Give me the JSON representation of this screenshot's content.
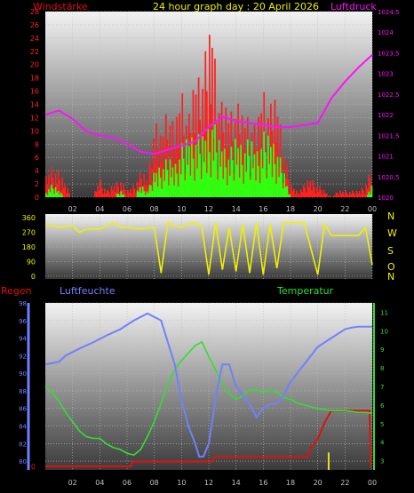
{
  "header": {
    "title": "24 hour graph day : 20 April 2026",
    "left_label": "Windstärke",
    "right_label": "Luftdruck"
  },
  "colors": {
    "background": "#000000",
    "panel_top": "#f2f2f2",
    "panel_bottom": "#404040",
    "grid": "#bdbdbd",
    "axis_text": "#c0c0c0",
    "wind": "#ff2020",
    "gust": "#30ff10",
    "pressure": "#ff10ff",
    "direction": "#f0f000",
    "temperature": "#30e030",
    "humidity": "#7080ff",
    "rain": "#e01010",
    "rain_bar": "#e8e020"
  },
  "chart_data": [
    {
      "type": "bar",
      "name": "wind-chart",
      "x_ticks": [
        "02",
        "04",
        "06",
        "08",
        "10",
        "12",
        "14",
        "16",
        "18",
        "20",
        "22",
        "00"
      ],
      "y_left": {
        "label": "Windstärke",
        "ylim": [
          0,
          28
        ],
        "ticks": [
          0,
          2,
          4,
          6,
          8,
          10,
          12,
          14,
          16,
          18,
          20,
          22,
          24,
          26,
          28
        ]
      },
      "y_right": {
        "label": "Luftdruck",
        "ylim": [
          1020,
          1024.5
        ],
        "ticks": [
          "1020",
          "1020,5",
          "1021",
          "1021,5",
          "1022",
          "1022,5",
          "1023",
          "1023,5",
          "1024",
          "1024,5"
        ]
      },
      "series": [
        {
          "name": "wind",
          "hours": [
            0,
            0.5,
            1,
            1.5,
            2,
            2.5,
            3,
            3.5,
            4,
            4.5,
            5,
            5.5,
            6,
            6.5,
            7,
            7.5,
            8,
            8.5,
            9,
            9.5,
            10,
            10.5,
            11,
            11.5,
            12,
            12.3,
            12.6,
            13,
            13.5,
            14,
            14.5,
            15,
            15.5,
            16,
            16.5,
            17,
            17.5,
            18,
            18.5,
            19,
            19.5,
            20,
            20.5,
            21,
            21.5,
            22,
            22.5,
            23,
            23.5,
            24
          ],
          "values": [
            3,
            5,
            4,
            2,
            0,
            0,
            0,
            0,
            3,
            1,
            2,
            3,
            1,
            2,
            4,
            3,
            12,
            9,
            15,
            10,
            17,
            12,
            18,
            20,
            24,
            27,
            17,
            14,
            13,
            15,
            12,
            13,
            10,
            17,
            14,
            15,
            8,
            2,
            1,
            2,
            3,
            2,
            1,
            0,
            1,
            1,
            1,
            1,
            2,
            5
          ]
        },
        {
          "name": "gust",
          "hours": [
            0,
            0.5,
            1,
            1.5,
            2,
            2.5,
            3,
            3.5,
            4,
            4.5,
            5,
            5.5,
            6,
            6.5,
            7,
            7.5,
            8,
            8.5,
            9,
            9.5,
            10,
            10.5,
            11,
            11.5,
            12,
            12.3,
            12.6,
            13,
            13.5,
            14,
            14.5,
            15,
            15.5,
            16,
            16.5,
            17,
            17.5,
            18,
            18.5,
            19,
            19.5,
            20,
            20.5,
            21,
            21.5,
            22,
            22.5,
            23,
            23.5,
            24
          ],
          "values": [
            1,
            2,
            1,
            0,
            0,
            0,
            0,
            0,
            0,
            0,
            0,
            1,
            0,
            0,
            2,
            1,
            4,
            5,
            6,
            5,
            8,
            9,
            10,
            9,
            11,
            13,
            9,
            8,
            7,
            9,
            8,
            9,
            7,
            10,
            9,
            8,
            4,
            0,
            0,
            0,
            0,
            0,
            0,
            0,
            0,
            0,
            0,
            0,
            0,
            2
          ]
        },
        {
          "name": "pressure",
          "hours": [
            0,
            1,
            2,
            3,
            4,
            5,
            6,
            7,
            8,
            9,
            10,
            11,
            12,
            13,
            14,
            15,
            16,
            17,
            18,
            19,
            20,
            21,
            22,
            23,
            24
          ],
          "values": [
            1022.0,
            1022.1,
            1021.9,
            1021.6,
            1021.5,
            1021.45,
            1021.3,
            1021.1,
            1021.05,
            1021.15,
            1021.25,
            1021.35,
            1021.7,
            1021.95,
            1021.85,
            1021.8,
            1021.75,
            1021.7,
            1021.7,
            1021.75,
            1021.8,
            1022.4,
            1022.8,
            1023.15,
            1023.45
          ]
        }
      ]
    },
    {
      "type": "line",
      "name": "direction-chart",
      "y_ticks": [
        "0",
        "90",
        "180",
        "270",
        "360"
      ],
      "ylim": [
        0,
        360
      ],
      "right_labels": [
        "N",
        "W",
        "S",
        "O",
        "N"
      ],
      "series": [
        {
          "name": "direction",
          "hours": [
            0,
            1,
            2,
            2.5,
            3,
            4,
            5,
            5.5,
            6,
            7,
            8,
            8.5,
            9,
            9.5,
            10,
            10.5,
            11,
            11.5,
            12,
            12.5,
            13,
            13.5,
            14,
            14.5,
            15,
            15.5,
            16,
            16.5,
            17,
            17.5,
            18,
            19,
            20,
            20.5,
            21,
            22,
            23,
            23.5,
            24
          ],
          "values": [
            320,
            300,
            310,
            270,
            290,
            290,
            330,
            300,
            300,
            290,
            300,
            20,
            330,
            310,
            300,
            320,
            330,
            300,
            10,
            330,
            40,
            300,
            30,
            320,
            20,
            330,
            10,
            320,
            50,
            330,
            330,
            330,
            10,
            320,
            250,
            250,
            250,
            300,
            70
          ]
        }
      ]
    },
    {
      "type": "line",
      "name": "climate-chart",
      "x_ticks": [
        "02",
        "04",
        "06",
        "08",
        "10",
        "12",
        "14",
        "16",
        "18",
        "20",
        "22",
        "00"
      ],
      "legend": {
        "rain": "Regen",
        "humidity": "Luftfeuchte",
        "temperature": "Temperatur"
      },
      "humidity_axis": {
        "ylim": [
          79,
          98
        ],
        "ticks": [
          80,
          82,
          84,
          86,
          88,
          90,
          92,
          94,
          96,
          98
        ]
      },
      "rain_axis": {
        "ylim": [
          0,
          18
        ],
        "ticks": [
          0
        ]
      },
      "temperature_axis": {
        "ylim": [
          2.5,
          11.5
        ],
        "ticks": [
          3,
          4,
          5,
          6,
          7,
          8,
          9,
          10,
          11
        ]
      },
      "series": [
        {
          "name": "humidity",
          "hours": [
            0,
            1,
            1.5,
            2.5,
            3.5,
            4.5,
            5.5,
            6.5,
            7.5,
            8.5,
            9.5,
            10,
            10.5,
            11,
            11.3,
            11.6,
            12,
            12.3,
            12.6,
            13,
            13.5,
            14,
            14.5,
            15,
            15.5,
            16,
            16.5,
            17,
            17.5,
            18,
            18.5,
            19,
            19.5,
            20,
            20.5,
            21,
            21.5,
            22,
            22.5,
            23,
            24
          ],
          "values": [
            91,
            91.3,
            92,
            92.8,
            93.5,
            94.3,
            95,
            96,
            96.8,
            96,
            91,
            87,
            84,
            82,
            80.5,
            80.5,
            82,
            85,
            88,
            91,
            91,
            88.5,
            87.5,
            86.5,
            85,
            86,
            86.5,
            86.5,
            87.5,
            89,
            90,
            91,
            92,
            93,
            93.5,
            94,
            94.5,
            95,
            95.2,
            95.3,
            95.3
          ]
        },
        {
          "name": "temperature",
          "hours": [
            0,
            0.5,
            1,
            1.5,
            2,
            2.5,
            3,
            3.5,
            4,
            4.5,
            5,
            5.5,
            6,
            6.5,
            7,
            7.5,
            8,
            8.5,
            9,
            9.5,
            10,
            10.5,
            11,
            11.5,
            12,
            12.5,
            13,
            13.5,
            14,
            14.5,
            15,
            15.5,
            16,
            16.5,
            17,
            17.5,
            18,
            18.5,
            19,
            19.5,
            20,
            20.5,
            21,
            21.5,
            22,
            22.5,
            23,
            23.5,
            24
          ],
          "values": [
            7,
            6.7,
            6.2,
            5.6,
            5.1,
            4.6,
            4.3,
            4.2,
            4.2,
            3.9,
            3.7,
            3.6,
            3.4,
            3.3,
            3.6,
            4.3,
            5.1,
            6.1,
            7.1,
            7.9,
            8.4,
            8.8,
            9.2,
            9.4,
            8.6,
            7.9,
            7.1,
            6.6,
            6.3,
            6.5,
            6.8,
            6.8,
            6.7,
            6.8,
            6.7,
            6.4,
            6.3,
            6.1,
            6.0,
            5.9,
            5.8,
            5.75,
            5.7,
            5.7,
            5.7,
            5.65,
            5.6,
            5.6,
            5.55
          ]
        },
        {
          "name": "rain",
          "hours": [
            0,
            6.3,
            6.4,
            12.3,
            12.4,
            19.3,
            19.5,
            20,
            20.3,
            20.6,
            21,
            23.8,
            23.9,
            24
          ],
          "values": [
            0,
            0,
            0.5,
            0.5,
            1,
            1,
            2,
            3,
            4,
            5,
            6,
            6,
            0,
            0
          ]
        },
        {
          "name": "rain_rate",
          "hours": [
            20.8
          ],
          "values": [
            1.5
          ]
        }
      ]
    }
  ]
}
